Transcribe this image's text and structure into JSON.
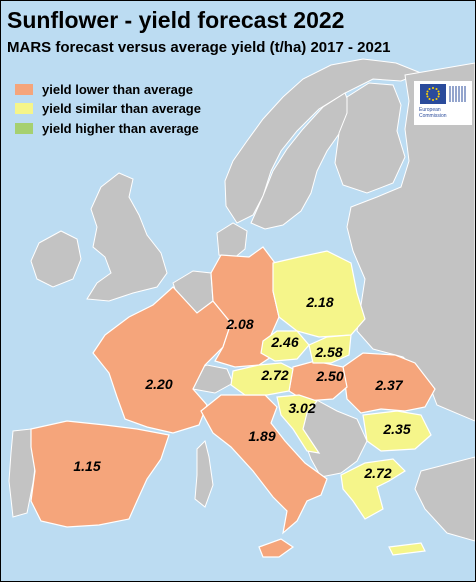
{
  "title": "Sunflower - yield forecast 2022",
  "subtitle": "MARS forecast versus average yield (t/ha) 2017 - 2021",
  "legend": [
    {
      "label": "yield lower than average",
      "color": "#f5a57b"
    },
    {
      "label": "yield similar than average",
      "color": "#f5f58a"
    },
    {
      "label": "yield higher than average",
      "color": "#a6d070"
    }
  ],
  "logo": {
    "line1": "European",
    "line2": "Commission"
  },
  "colors": {
    "sea": "#bcdcf2",
    "no_data": "#c3c3c3",
    "lower": "#f5a57b",
    "similar": "#f5f58a",
    "higher": "#a6d070"
  },
  "regions": [
    {
      "name": "Spain",
      "value": "1.15",
      "category": "lower"
    },
    {
      "name": "France",
      "value": "2.20",
      "category": "lower"
    },
    {
      "name": "Germany",
      "value": "2.08",
      "category": "lower"
    },
    {
      "name": "Italy",
      "value": "1.89",
      "category": "lower"
    },
    {
      "name": "Romania",
      "value": "2.37",
      "category": "lower"
    },
    {
      "name": "Hungary",
      "value": "2.50",
      "category": "lower"
    },
    {
      "name": "Poland",
      "value": "2.18",
      "category": "similar"
    },
    {
      "name": "Czechia",
      "value": "2.46",
      "category": "similar"
    },
    {
      "name": "Slovakia",
      "value": "2.58",
      "category": "similar"
    },
    {
      "name": "Austria",
      "value": "2.72",
      "category": "similar"
    },
    {
      "name": "Croatia",
      "value": "3.02",
      "category": "similar"
    },
    {
      "name": "Bulgaria",
      "value": "2.35",
      "category": "similar"
    },
    {
      "name": "Greece",
      "value": "2.72",
      "category": "similar"
    }
  ]
}
